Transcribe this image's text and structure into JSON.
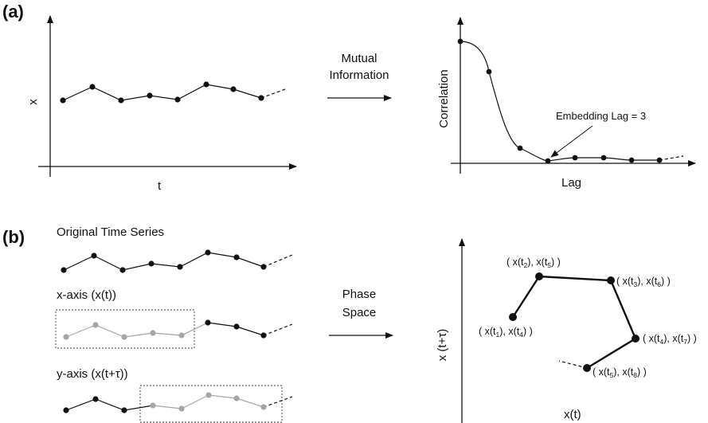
{
  "panel_a": {
    "label": "(a)",
    "left_plot": {
      "xlabel": "t",
      "ylabel": "x"
    },
    "arrow_text": {
      "line1": "Mutual",
      "line2": "Information"
    },
    "right_plot": {
      "xlabel": "Lag",
      "ylabel": "Correlation",
      "annotation": "Embedding Lag = 3"
    }
  },
  "panel_b": {
    "label": "(b)",
    "original_title": "Original Time Series",
    "x_axis_title": "x-axis (x(t))",
    "y_axis_title": "y-axis (x(t+τ))",
    "arrow_text": {
      "line1": "Phase",
      "line2": "Space"
    },
    "phase_plot": {
      "xlabel": "x(t)",
      "ylabel": "x (t+τ)",
      "points": [
        {
          "a": "1",
          "b": "4"
        },
        {
          "a": "2",
          "b": "5"
        },
        {
          "a": "3",
          "b": "6"
        },
        {
          "a": "4",
          "b": "7"
        },
        {
          "a": "5",
          "b": "8"
        }
      ]
    }
  },
  "colors": {
    "active": "#111111",
    "faded": "#a6a6a6"
  }
}
